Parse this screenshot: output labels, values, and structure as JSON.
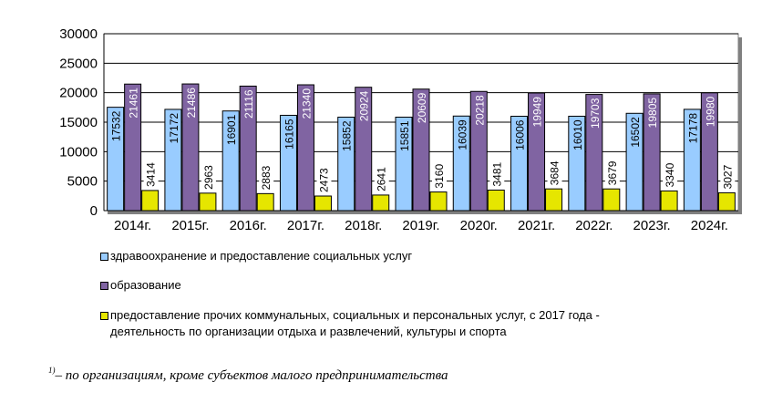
{
  "chart_data": {
    "type": "bar",
    "title": "",
    "xlabel": "",
    "ylabel": "",
    "ylim": [
      0,
      30000
    ],
    "yticks": [
      0,
      5000,
      10000,
      15000,
      20000,
      25000,
      30000
    ],
    "grid": true,
    "categories": [
      "2014г.",
      "2015г.",
      "2016г.",
      "2017г.",
      "2018г.",
      "2019г.",
      "2020г.",
      "2021г.",
      "2022г.",
      "2023г.",
      "2024г."
    ],
    "series": [
      {
        "name": "здравоохранение и предоставление социальных услуг",
        "color": "#99ccff",
        "values": [
          17532,
          17172,
          16901,
          16165,
          15852,
          15851,
          16039,
          16006,
          16010,
          16502,
          17178
        ]
      },
      {
        "name": "образование",
        "color": "#8064a2",
        "values": [
          21461,
          21486,
          21116,
          21340,
          20924,
          20609,
          20218,
          19949,
          19703,
          19805,
          19980
        ]
      },
      {
        "name": "предоставление прочих коммунальных, социальных и персональных услуг, с 2017 года - деятельность по организации отдыха и развлечений, культуры и спорта",
        "color": "#e6e600",
        "values": [
          3414,
          2963,
          2883,
          2473,
          2641,
          3160,
          3481,
          3684,
          3679,
          3340,
          3027
        ]
      }
    ],
    "legend": [
      {
        "label": "здравоохранение и предоставление социальных услуг",
        "color": "#99ccff"
      },
      {
        "label": "образование",
        "color": "#8064a2"
      },
      {
        "label_line1": "предоставление прочих коммунальных, социальных и персональных услуг, с 2017 года -",
        "label_line2": "деятельность по организации отдыха и развлечений, культуры и спорта",
        "color": "#e6e600"
      }
    ]
  },
  "footnote": {
    "marker": "1)",
    "text": "– по организациям, кроме субъектов малого предпринимательства"
  }
}
